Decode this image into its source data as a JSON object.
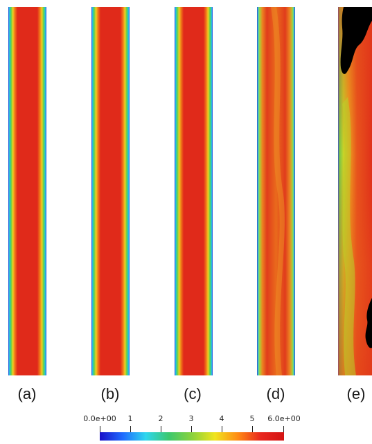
{
  "panels": [
    {
      "label": "(a)",
      "field": "laminar-profile"
    },
    {
      "label": "(b)",
      "field": "laminar-profile"
    },
    {
      "label": "(c)",
      "field": "laminar-profile"
    },
    {
      "label": "(d)",
      "field": "wavy-profile"
    },
    {
      "label": "(e)",
      "field": "turbulent-profile"
    }
  ],
  "colorbar": {
    "min": 0,
    "max": 6,
    "ticks": [
      {
        "value": 0,
        "label": "0.0e+00"
      },
      {
        "value": 1,
        "label": "1"
      },
      {
        "value": 2,
        "label": "2"
      },
      {
        "value": 3,
        "label": "3"
      },
      {
        "value": 4,
        "label": "4"
      },
      {
        "value": 5,
        "label": "5"
      },
      {
        "value": 6,
        "label": "6.0e+00"
      }
    ],
    "colors": [
      "#1a0fc8",
      "#1e6bff",
      "#2fd6ee",
      "#3cc86e",
      "#8ad23c",
      "#f0e41e",
      "#ff8a14",
      "#e8261e",
      "#d41414"
    ]
  }
}
